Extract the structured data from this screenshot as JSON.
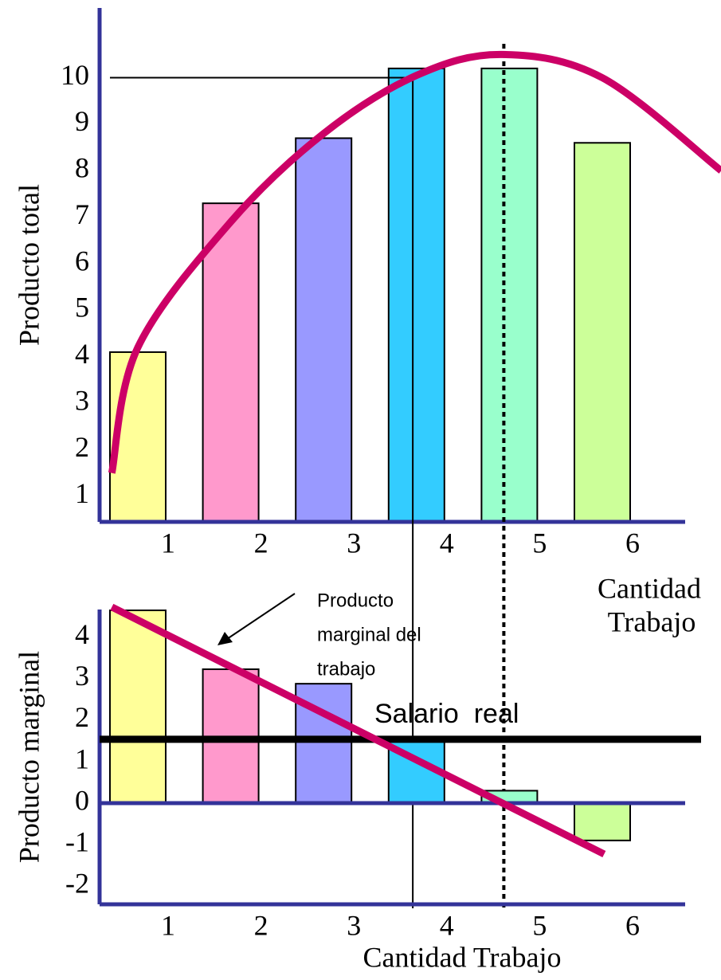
{
  "chart_data": [
    {
      "type": "bar",
      "ylabel": "Producto total",
      "categories": [
        "1",
        "2",
        "3",
        "4",
        "5",
        "6"
      ],
      "values": [
        4.1,
        7.3,
        8.7,
        10.2,
        10.2,
        8.6
      ],
      "colors": [
        "#ffff99",
        "#ff99cc",
        "#9999ff",
        "#33ccff",
        "#99ffcc",
        "#ccff99"
      ],
      "ylim": [
        0.45,
        11.5
      ],
      "yticks": [
        1,
        2,
        3,
        4,
        5,
        6,
        7,
        8,
        9,
        10
      ],
      "curve": {
        "color": "#cc0066",
        "x": [
          0.72,
          1,
          2,
          3,
          4,
          4.92,
          6,
          7.28
        ],
        "values": [
          1.5,
          4.2,
          6.9,
          8.8,
          10.05,
          10.5,
          10.0,
          8.0
        ]
      },
      "hlines": [
        {
          "y": 10,
          "style": "solid"
        }
      ],
      "vlines": [
        {
          "x": 3.96,
          "style": "solid"
        },
        {
          "x": 4.94,
          "style": "dotted"
        }
      ],
      "xlabel_lines": [
        "Cantidad",
        "Trabajo"
      ]
    },
    {
      "type": "bar",
      "ylabel": "Producto  marginal",
      "xlabel": "Cantidad Trabajo",
      "categories": [
        "1",
        "2",
        "3",
        "4",
        "5",
        "6"
      ],
      "values": [
        4.65,
        3.23,
        2.88,
        1.6,
        0.3,
        -0.9
      ],
      "colors": [
        "#ffff99",
        "#ff99cc",
        "#9999ff",
        "#33ccff",
        "#99ffcc",
        "#ccff99"
      ],
      "ylim": [
        -2.44,
        4.67
      ],
      "yticks": [
        4,
        3,
        2,
        1,
        0,
        -1,
        -2
      ],
      "curve": {
        "color": "#cc0066",
        "x": [
          0.72,
          6.02
        ],
        "values": [
          4.73,
          -1.23
        ]
      },
      "hlines": [
        {
          "y": 1.54,
          "style": "thick",
          "label": "Salario  real"
        }
      ],
      "annotation_lines": [
        "Producto",
        "marginal del",
        "trabajo"
      ]
    }
  ]
}
